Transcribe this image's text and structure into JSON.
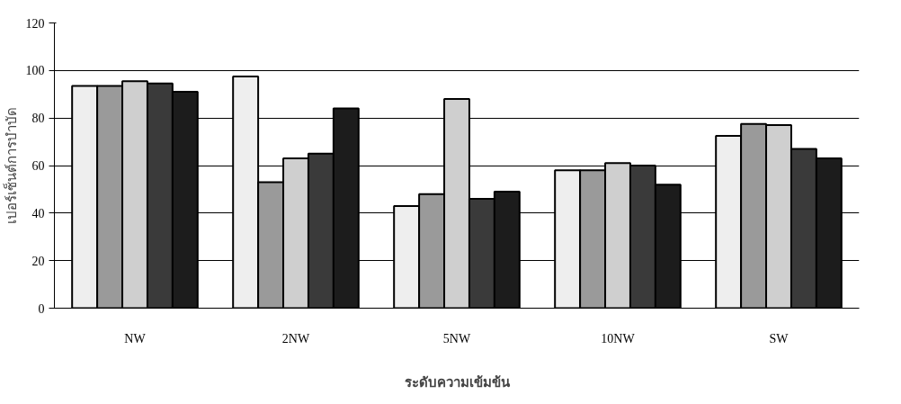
{
  "chart_data": {
    "type": "bar",
    "xlabel": "ระดับความเข้มข้น",
    "ylabel": "เปอร์เซ็นต์การบำบัด",
    "categories": [
      "NW",
      "2NW",
      "5NW",
      "10NW",
      "SW"
    ],
    "series": [
      {
        "color": "#eeeeee",
        "values": [
          93.5,
          97.5,
          43,
          58,
          72.5
        ]
      },
      {
        "color": "#9a9a9a",
        "values": [
          93.5,
          53,
          48,
          58,
          77.5
        ]
      },
      {
        "color": "#cfcfcf",
        "values": [
          95.5,
          63,
          88,
          61,
          77
        ]
      },
      {
        "color": "#3a3a3a",
        "values": [
          94.5,
          65,
          46,
          60,
          67
        ]
      },
      {
        "color": "#1c1c1c",
        "values": [
          91,
          84,
          49,
          52,
          63
        ]
      }
    ],
    "ylim": [
      0,
      120
    ],
    "yticks": [
      0,
      20,
      40,
      60,
      80,
      100,
      120
    ],
    "grid": "y"
  }
}
